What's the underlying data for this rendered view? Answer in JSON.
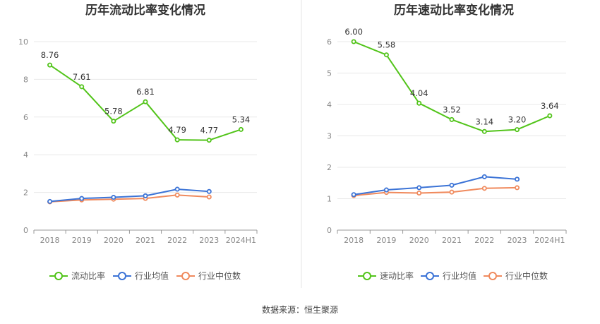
{
  "source": "数据来源：恒生聚源",
  "chart_data": [
    {
      "type": "line",
      "title": "历年流动比率变化情况",
      "categories": [
        "2018",
        "2019",
        "2020",
        "2021",
        "2022",
        "2023",
        "2024H1"
      ],
      "ylim": [
        0,
        10
      ],
      "yticks": [
        0,
        2,
        4,
        6,
        8,
        10
      ],
      "grid": true,
      "legend_position": "bottom",
      "series": [
        {
          "name": "流动比率",
          "color": "#52c41a",
          "values": [
            8.76,
            7.61,
            5.78,
            6.81,
            4.79,
            4.77,
            5.34
          ],
          "labels": [
            "8.76",
            "7.61",
            "5.78",
            "6.81",
            "4.79",
            "4.77",
            "5.34"
          ]
        },
        {
          "name": "行业均值",
          "color": "#3b73d6",
          "values": [
            1.52,
            1.68,
            1.74,
            1.82,
            2.17,
            2.05,
            null
          ]
        },
        {
          "name": "行业中位数",
          "color": "#f08a5d",
          "values": [
            1.5,
            1.6,
            1.64,
            1.68,
            1.86,
            1.76,
            null
          ]
        }
      ]
    },
    {
      "type": "line",
      "title": "历年速动比率变化情况",
      "categories": [
        "2018",
        "2019",
        "2020",
        "2021",
        "2022",
        "2023",
        "2024H1"
      ],
      "ylim": [
        0,
        6
      ],
      "yticks": [
        0,
        1,
        2,
        3,
        4,
        5,
        6
      ],
      "grid": true,
      "legend_position": "bottom",
      "series": [
        {
          "name": "速动比率",
          "color": "#52c41a",
          "values": [
            6.0,
            5.58,
            4.04,
            3.52,
            3.14,
            3.2,
            3.64
          ],
          "labels": [
            "6.00",
            "5.58",
            "4.04",
            "3.52",
            "3.14",
            "3.20",
            "3.64"
          ]
        },
        {
          "name": "行业均值",
          "color": "#3b73d6",
          "values": [
            1.13,
            1.28,
            1.35,
            1.43,
            1.7,
            1.62,
            null
          ]
        },
        {
          "name": "行业中位数",
          "color": "#f08a5d",
          "values": [
            1.1,
            1.2,
            1.18,
            1.21,
            1.33,
            1.35,
            null
          ]
        }
      ]
    }
  ]
}
